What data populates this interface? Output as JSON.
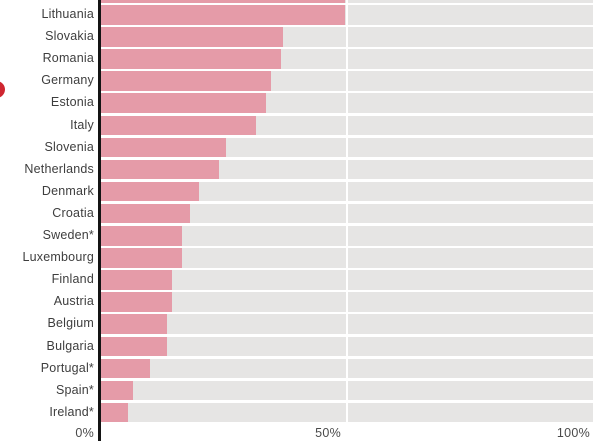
{
  "chart_data": {
    "type": "bar",
    "orientation": "horizontal",
    "title": "",
    "xlabel": "",
    "ylabel": "",
    "xlim": [
      0,
      100
    ],
    "unit": "percent",
    "grid": "50% white gridline only",
    "legend": "none",
    "categories": [
      "Lithuania",
      "Slovakia",
      "Romania",
      "Germany",
      "Estonia",
      "Italy",
      "Slovenia",
      "Netherlands",
      "Denmark",
      "Croatia",
      "Sweden*",
      "Luxembourg",
      "Finland",
      "Austria",
      "Belgium",
      "Bulgaria",
      "Portugal*",
      "Spain*",
      "Ireland*"
    ],
    "values": [
      49.5,
      37,
      36.5,
      34.5,
      33.5,
      31.5,
      25.5,
      24,
      20,
      18,
      16.5,
      16.5,
      14.5,
      14.5,
      13.5,
      13.5,
      10,
      6.5,
      5.5
    ],
    "cropped_top_bar_value": 49.5,
    "x_ticks": [
      "0%",
      "50%",
      "100%"
    ],
    "x_tick_positions": [
      0,
      50,
      100
    ],
    "colors": {
      "bar": "#e59ba8",
      "track": "#e6e5e4",
      "axis_line": "#141414",
      "label_text": "#3e3e3e",
      "tick_text": "#4a4a4a",
      "gridline": "#ffffff",
      "red_dot": "#cf2630"
    }
  }
}
